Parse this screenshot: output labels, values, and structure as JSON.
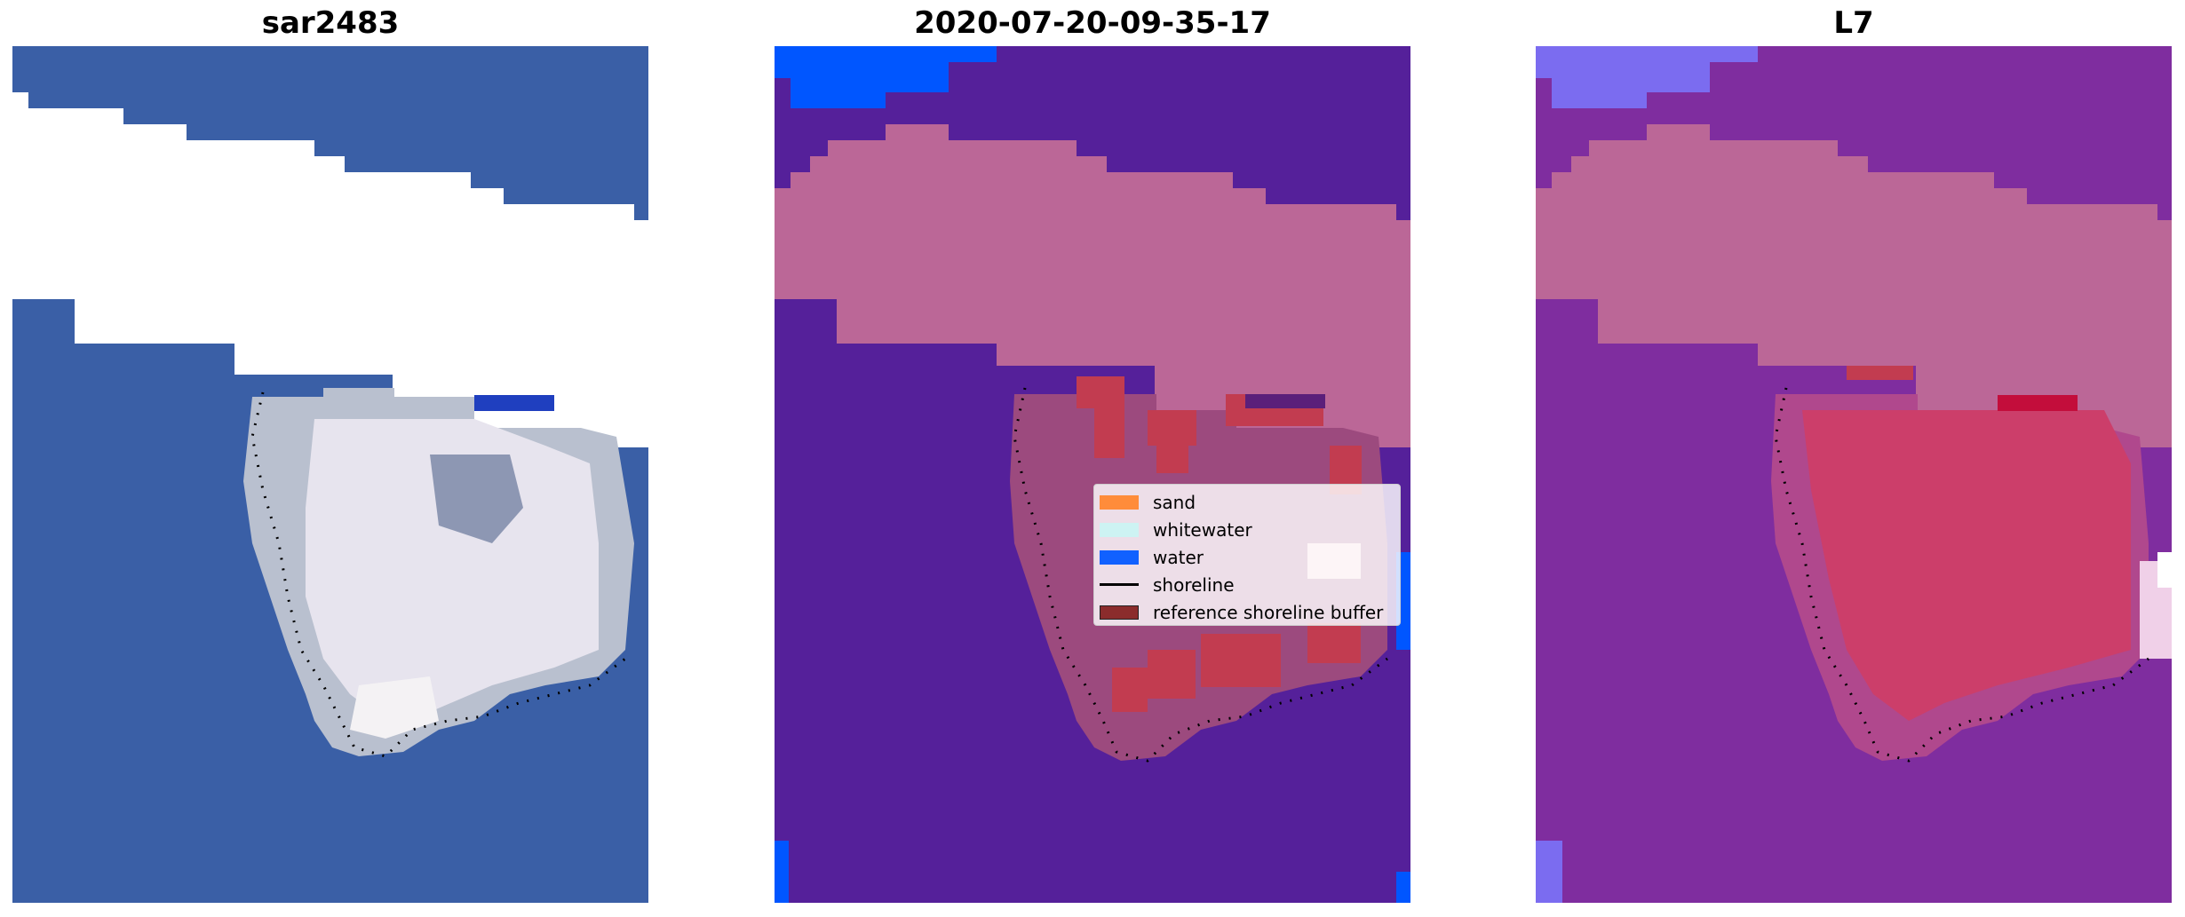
{
  "panels": [
    {
      "title": "sar2483"
    },
    {
      "title": "2020-07-20-09-35-17"
    },
    {
      "title": "L7"
    }
  ],
  "legend": {
    "items": [
      {
        "label": "sand",
        "color": "#ff8c3a",
        "kind": "patch"
      },
      {
        "label": "whitewater",
        "color": "#cdf3f3",
        "kind": "patch"
      },
      {
        "label": "water",
        "color": "#1161ff",
        "kind": "patch"
      },
      {
        "label": "shoreline",
        "color": "#000000",
        "kind": "line"
      },
      {
        "label": "reference shoreline buffer",
        "color": "#8b2c2c",
        "kind": "patch"
      }
    ]
  },
  "colors": {
    "rgb_water": "#3a5fa6",
    "rgb_island": "#e6e1ea",
    "class_background": "#55209a",
    "class_nodata": "#bb6797",
    "class_water_edge": "#0056ff",
    "class_buffer": "#b04a6e",
    "class_sand": "#c23c50",
    "index_background": "#7f2d9f",
    "index_nodata": "#bb6797",
    "index_island": "#cc3e6a"
  }
}
